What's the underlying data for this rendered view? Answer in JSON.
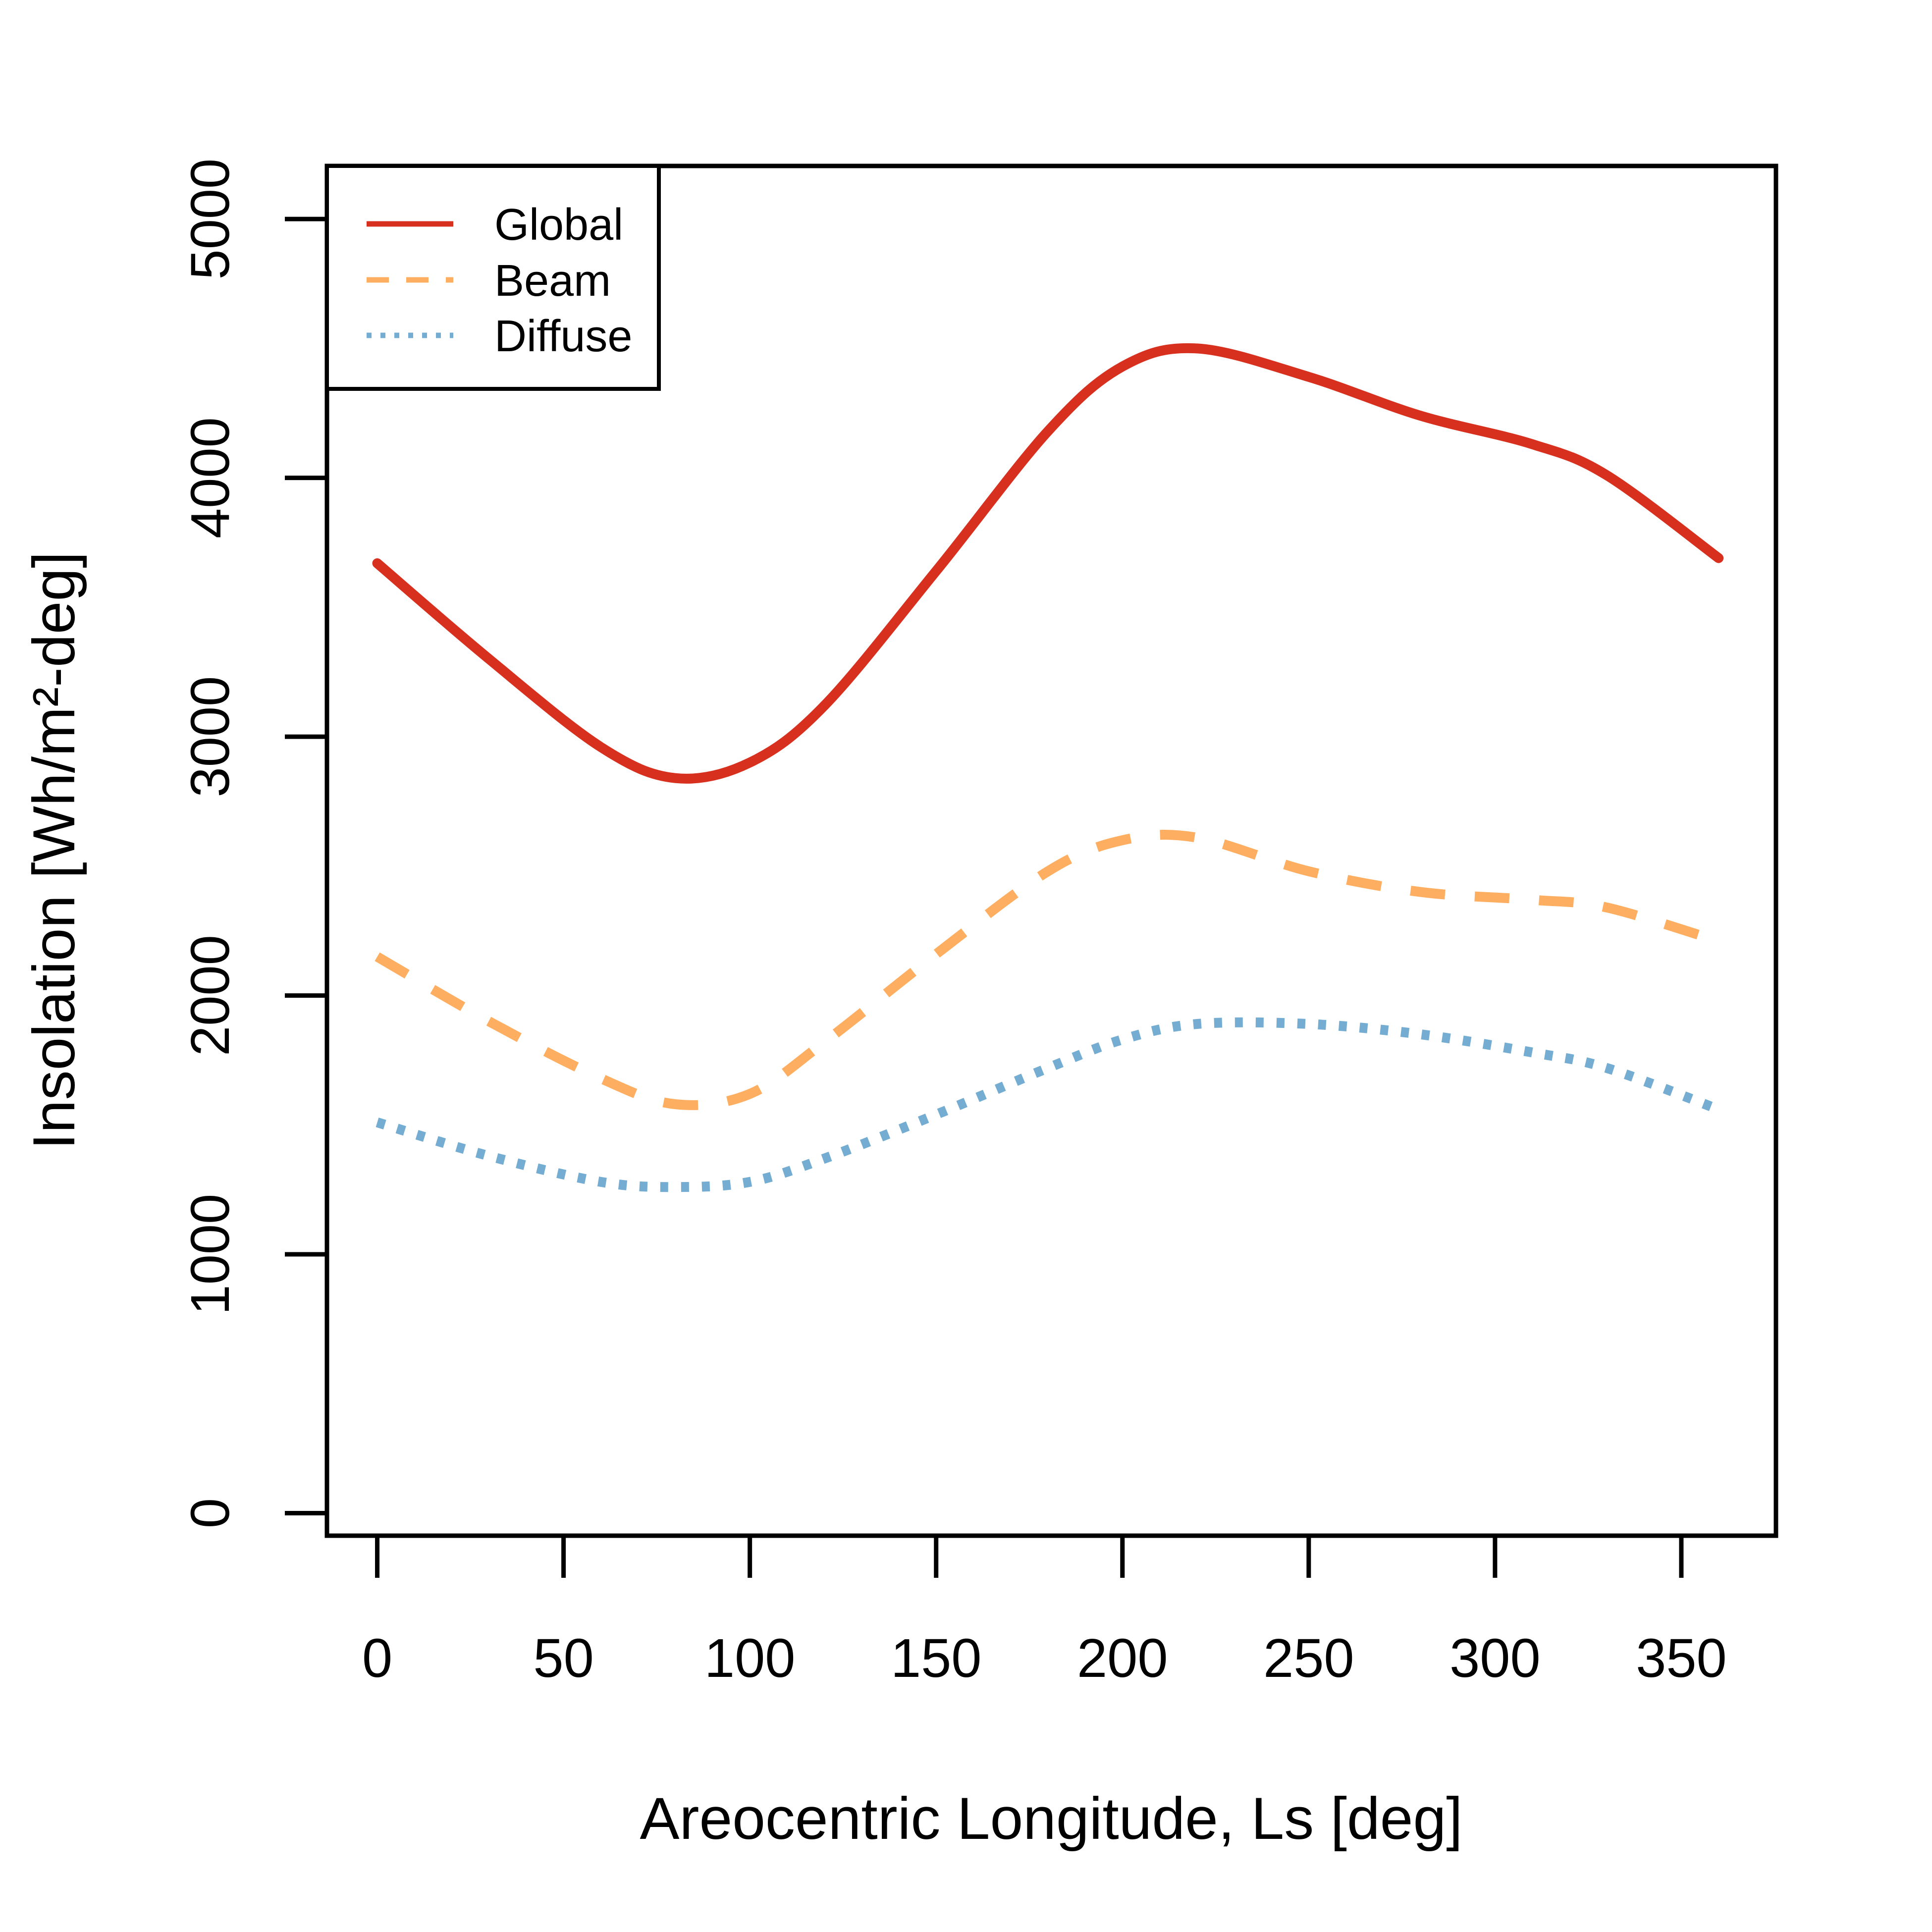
{
  "chart_data": {
    "type": "line",
    "xlabel": "Areocentric Longitude, Ls [deg]",
    "ylabel": "Insolation [Wh/m²-deg]",
    "xlim": [
      -13.5,
      375.4
    ],
    "ylim": [
      -87,
      5205
    ],
    "x_ticks": [
      0,
      50,
      100,
      150,
      200,
      250,
      300,
      350
    ],
    "x_tick_labels": [
      "0",
      "50",
      "100",
      "150",
      "200",
      "250",
      "300",
      "350"
    ],
    "y_ticks": [
      0,
      1000,
      2000,
      3000,
      4000,
      5000
    ],
    "y_tick_labels": [
      "0",
      "1000",
      "2000",
      "3000",
      "4000",
      "5000"
    ],
    "grid": false,
    "legend_position": "top-left",
    "x": [
      0,
      30,
      60,
      80,
      100,
      120,
      150,
      180,
      200,
      220,
      250,
      280,
      310,
      330,
      360
    ],
    "series": [
      {
        "name": "Global",
        "color": "#d7301f",
        "style": "solid",
        "values": [
          3670,
          3300,
          2960,
          2840,
          2900,
          3120,
          3640,
          4180,
          4430,
          4500,
          4390,
          4240,
          4130,
          4010,
          3690
        ]
      },
      {
        "name": "Beam",
        "color": "#fdae61",
        "style": "dashed",
        "values": [
          2150,
          1900,
          1680,
          1580,
          1620,
          1820,
          2160,
          2480,
          2600,
          2610,
          2480,
          2400,
          2370,
          2340,
          2210
        ]
      },
      {
        "name": "Diffuse",
        "color": "#74add1",
        "style": "dotted",
        "values": [
          1510,
          1380,
          1280,
          1260,
          1280,
          1370,
          1540,
          1720,
          1830,
          1890,
          1890,
          1850,
          1780,
          1720,
          1560
        ]
      }
    ]
  }
}
